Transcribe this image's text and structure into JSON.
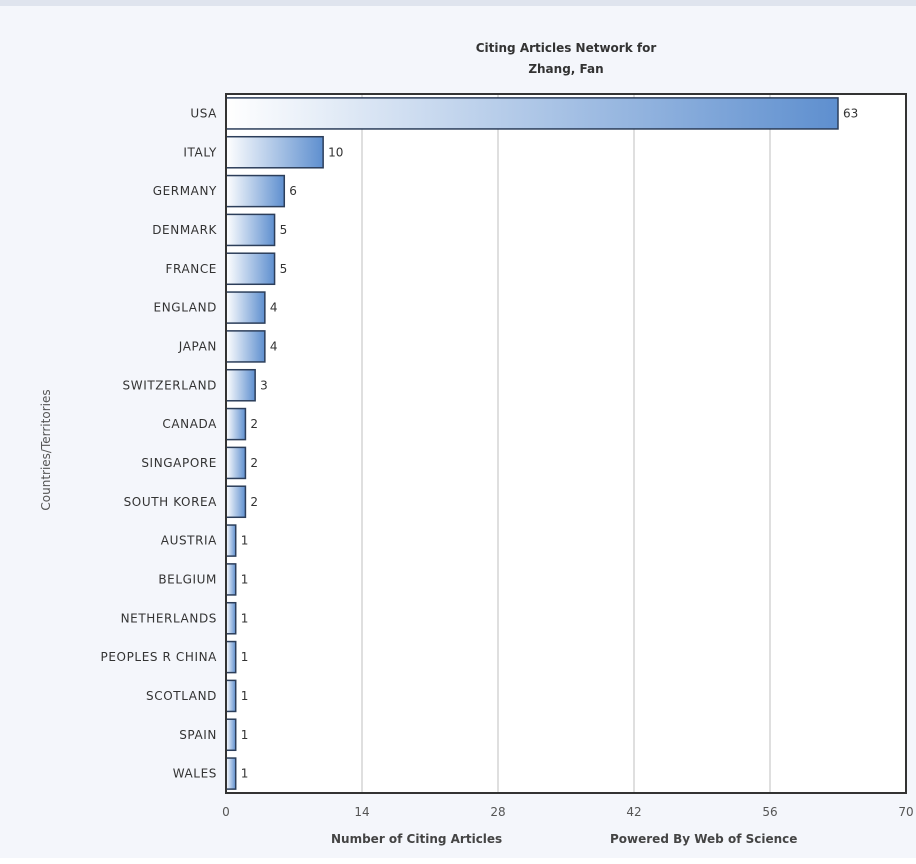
{
  "chart_data": {
    "type": "bar",
    "orientation": "horizontal",
    "title": "Citing Articles Network for",
    "subtitle": "Zhang, Fan",
    "xlabel": "Number of Citing Articles",
    "ylabel": "Countries/Territories",
    "footer": "Powered By Web of Science",
    "categories": [
      "USA",
      "ITALY",
      "GERMANY",
      "DENMARK",
      "FRANCE",
      "ENGLAND",
      "JAPAN",
      "SWITZERLAND",
      "CANADA",
      "SINGAPORE",
      "SOUTH KOREA",
      "AUSTRIA",
      "BELGIUM",
      "NETHERLANDS",
      "PEOPLES R CHINA",
      "SCOTLAND",
      "SPAIN",
      "WALES"
    ],
    "values": [
      63,
      10,
      6,
      5,
      5,
      4,
      4,
      3,
      2,
      2,
      2,
      1,
      1,
      1,
      1,
      1,
      1,
      1
    ],
    "xlim": [
      0,
      70
    ],
    "xticks": [
      0,
      14,
      28,
      42,
      56,
      70
    ],
    "grid": true,
    "bar_gradient": [
      "#ffffff",
      "#5e8fcf"
    ],
    "bar_stroke": "#2c3e5a"
  }
}
